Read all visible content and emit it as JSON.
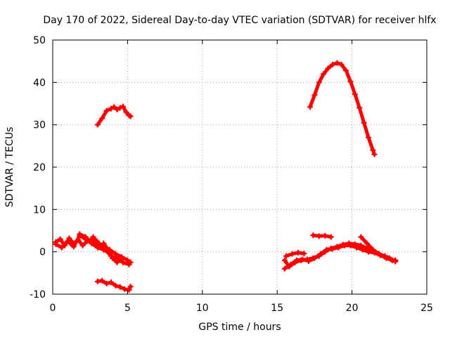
{
  "chart_data": {
    "type": "scatter",
    "title": "Day 170 of 2022, Sidereal Day-to-day VTEC variation (SDTVAR) for receiver hlfx",
    "xlabel": "GPS time / hours",
    "ylabel": "SDTVAR / TECUs",
    "xlim": [
      0,
      25
    ],
    "ylim": [
      -10,
      50
    ],
    "xticks": [
      0,
      5,
      10,
      15,
      20,
      25
    ],
    "yticks": [
      -10,
      0,
      10,
      20,
      30,
      40,
      50
    ],
    "grid": true,
    "legend": "none",
    "series_color": "#ff0000",
    "segments": [
      {
        "name": "early-high-arc",
        "x": [
          3.0,
          3.3,
          3.6,
          3.9,
          4.1,
          4.3,
          4.5,
          4.7,
          4.9,
          5.1,
          5.2
        ],
        "y": [
          30.0,
          31.5,
          33.3,
          33.8,
          34.2,
          33.6,
          34.0,
          34.3,
          33.0,
          32.2,
          32.0
        ]
      },
      {
        "name": "early-cluster-a",
        "x": [
          0.2,
          0.5,
          0.8,
          1.1,
          1.4,
          1.7,
          2.0,
          2.3,
          2.6,
          2.9,
          3.2
        ],
        "y": [
          2.3,
          3.0,
          1.5,
          3.2,
          2.0,
          2.8,
          1.5,
          2.5,
          3.0,
          2.2,
          1.5
        ]
      },
      {
        "name": "early-cluster-b",
        "x": [
          0.2,
          0.6,
          1.0,
          1.4,
          1.8,
          2.2,
          2.6,
          3.0,
          3.4
        ],
        "y": [
          1.8,
          1.0,
          2.5,
          1.2,
          3.8,
          3.0,
          2.0,
          1.0,
          0.5
        ]
      },
      {
        "name": "early-cluster-c",
        "x": [
          1.8,
          2.2,
          2.6,
          3.0,
          3.4,
          3.8,
          4.2,
          4.6,
          5.0,
          5.2
        ],
        "y": [
          4.2,
          3.5,
          2.0,
          1.2,
          0.5,
          0.5,
          -0.5,
          -1.2,
          -2.0,
          -2.5
        ]
      },
      {
        "name": "early-cluster-d",
        "x": [
          2.7,
          3.1,
          3.5,
          3.9,
          4.3,
          4.7,
          5.1
        ],
        "y": [
          3.5,
          2.0,
          0.5,
          -1.0,
          -1.5,
          -2.5,
          -3.0
        ]
      },
      {
        "name": "early-cluster-e",
        "x": [
          3.4,
          3.7,
          4.0,
          4.3
        ],
        "y": [
          2.0,
          0.5,
          -1.5,
          -2.5
        ]
      },
      {
        "name": "early-low-arc",
        "x": [
          3.0,
          3.3,
          3.6,
          3.9,
          4.2,
          4.5,
          4.8,
          5.1,
          5.2
        ],
        "y": [
          -7.0,
          -6.8,
          -7.5,
          -7.2,
          -8.0,
          -8.3,
          -8.8,
          -9.0,
          -8.2
        ]
      },
      {
        "name": "late-high-arc",
        "x": [
          17.2,
          17.5,
          17.8,
          18.1,
          18.4,
          18.7,
          19.0,
          19.3,
          19.6,
          19.9,
          20.2,
          20.5,
          20.8,
          21.1,
          21.4,
          21.5
        ],
        "y": [
          34.2,
          37.0,
          40.0,
          42.0,
          43.3,
          44.2,
          44.6,
          44.2,
          42.8,
          40.2,
          37.2,
          34.0,
          30.5,
          27.0,
          24.0,
          23.0
        ]
      },
      {
        "name": "late-short-mid",
        "x": [
          17.4,
          17.8,
          18.2,
          18.6
        ],
        "y": [
          3.9,
          3.7,
          3.8,
          3.5
        ]
      },
      {
        "name": "late-cluster-a",
        "x": [
          15.5,
          15.8,
          16.2,
          16.6,
          17.0,
          17.4,
          17.8,
          18.2,
          18.6,
          19.0,
          19.4,
          19.8,
          20.2,
          20.6,
          21.0,
          21.4,
          21.8,
          22.2,
          22.6,
          22.9
        ],
        "y": [
          -2.0,
          -3.5,
          -2.5,
          -2.0,
          -1.8,
          -1.5,
          -1.0,
          0.0,
          0.8,
          1.2,
          1.7,
          2.0,
          1.8,
          1.5,
          0.8,
          0.2,
          -0.5,
          -1.2,
          -1.8,
          -2.0
        ]
      },
      {
        "name": "late-cluster-b",
        "x": [
          15.5,
          15.9,
          16.3,
          16.7,
          17.1,
          17.5,
          17.9,
          18.3,
          18.7,
          19.1,
          19.5,
          19.9,
          20.3,
          20.7,
          21.1,
          21.5,
          21.9,
          22.3,
          22.7,
          22.9
        ],
        "y": [
          -4.0,
          -3.0,
          -2.0,
          -1.8,
          -2.2,
          -1.5,
          -0.5,
          0.5,
          0.7,
          1.0,
          1.5,
          1.5,
          1.0,
          0.5,
          0.0,
          -0.2,
          -0.8,
          -1.5,
          -2.0,
          -2.3
        ]
      },
      {
        "name": "late-cluster-c",
        "x": [
          15.6,
          16.0,
          16.4,
          16.8
        ],
        "y": [
          -1.0,
          -0.5,
          -0.2,
          -0.4
        ]
      },
      {
        "name": "late-cluster-d",
        "x": [
          20.6,
          21.0,
          21.4,
          21.8,
          22.2,
          22.5
        ],
        "y": [
          3.5,
          2.0,
          0.5,
          -0.5,
          -1.0,
          -1.5
        ]
      }
    ]
  }
}
